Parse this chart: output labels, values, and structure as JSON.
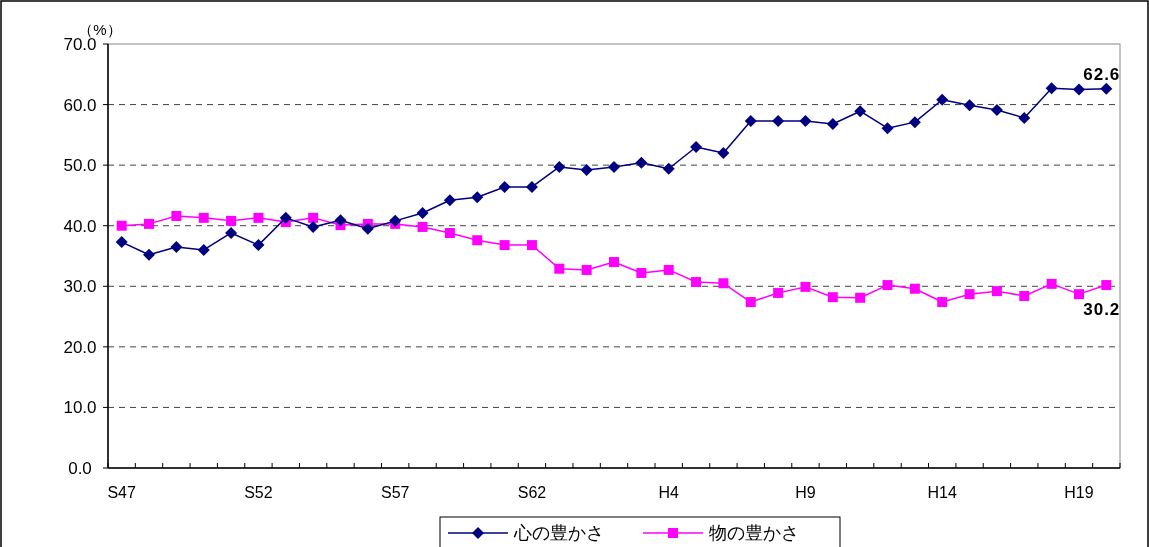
{
  "chart_data": {
    "type": "line",
    "ylabel": "（%）",
    "categories": [
      "S47",
      null,
      null,
      null,
      null,
      "S52",
      null,
      null,
      null,
      null,
      "S57",
      null,
      null,
      null,
      null,
      "S62",
      null,
      null,
      null,
      null,
      "H4",
      null,
      null,
      null,
      null,
      "H9",
      null,
      null,
      null,
      null,
      "H14",
      null,
      null,
      null,
      null,
      "H19",
      null
    ],
    "series": [
      {
        "name": "心の豊かさ",
        "color": "#000080",
        "marker": "diamond",
        "values": [
          37.3,
          35.2,
          36.5,
          36.0,
          38.8,
          36.8,
          41.3,
          39.8,
          40.9,
          39.5,
          40.8,
          42.1,
          44.2,
          44.7,
          46.4,
          46.4,
          49.7,
          49.2,
          49.7,
          50.4,
          49.4,
          53.0,
          52.0,
          57.3,
          57.3,
          57.3,
          56.8,
          58.9,
          56.1,
          57.1,
          60.8,
          59.9,
          59.1,
          57.8,
          62.7,
          62.5,
          62.6
        ],
        "value_labels": [
          null,
          null,
          null,
          null,
          null,
          null,
          null,
          null,
          null,
          null,
          null,
          null,
          null,
          null,
          null,
          null,
          null,
          null,
          null,
          null,
          null,
          null,
          null,
          null,
          null,
          null,
          null,
          null,
          null,
          null,
          null,
          null,
          null,
          null,
          null,
          null,
          "62.6"
        ]
      },
      {
        "name": "物の豊かさ",
        "color": "#ff00ff",
        "marker": "square",
        "values": [
          40.0,
          40.3,
          41.6,
          41.3,
          40.8,
          41.3,
          40.6,
          41.3,
          40.1,
          40.3,
          40.3,
          39.8,
          38.8,
          37.6,
          36.8,
          36.8,
          32.9,
          32.7,
          34.0,
          32.2,
          32.7,
          30.7,
          30.5,
          27.4,
          28.9,
          29.9,
          28.2,
          28.1,
          30.2,
          29.6,
          27.4,
          28.7,
          29.2,
          28.4,
          30.4,
          28.7,
          30.2
        ],
        "value_labels": [
          null,
          null,
          null,
          null,
          null,
          null,
          null,
          null,
          null,
          null,
          null,
          null,
          null,
          null,
          null,
          null,
          null,
          null,
          null,
          null,
          null,
          null,
          null,
          null,
          null,
          null,
          null,
          null,
          null,
          null,
          null,
          null,
          null,
          null,
          null,
          null,
          "30.2"
        ]
      }
    ],
    "ylim": [
      0,
      70
    ],
    "yticks": [
      {
        "value": 0,
        "label": "0.0"
      },
      {
        "value": 10,
        "label": "10.0"
      },
      {
        "value": 20,
        "label": "20.0"
      },
      {
        "value": 30,
        "label": "30.0"
      },
      {
        "value": 40,
        "label": "40.0"
      },
      {
        "value": 50,
        "label": "50.0"
      },
      {
        "value": 60,
        "label": "60.0"
      },
      {
        "value": 70,
        "label": "70.0"
      }
    ],
    "grid": "y",
    "legend": "bottom",
    "line_style": "solid"
  }
}
